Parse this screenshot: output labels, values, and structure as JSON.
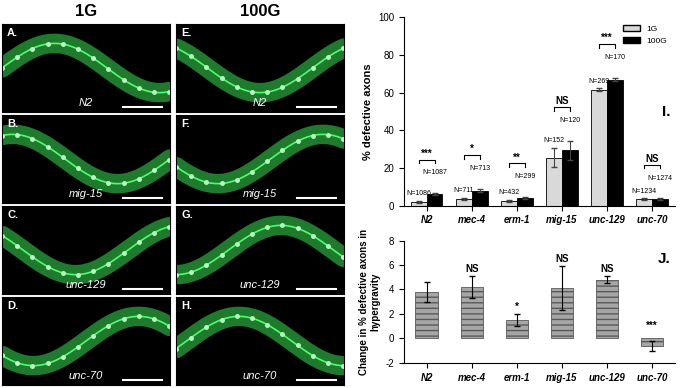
{
  "image_panels": {
    "column_headers": [
      "1G",
      "100G"
    ],
    "rows": [
      {
        "strain": "N2",
        "labels": [
          "A.",
          "E."
        ]
      },
      {
        "strain": "mig-15",
        "labels": [
          "B.",
          "F."
        ]
      },
      {
        "strain": "unc-129",
        "labels": [
          "C.",
          "G."
        ]
      },
      {
        "strain": "unc-70",
        "labels": [
          "D.",
          "H."
        ]
      }
    ]
  },
  "chart_data": [
    {
      "type": "bar",
      "panel_label": "I.",
      "y_label": "% defective axons",
      "categories": [
        "N2",
        "mec-4",
        "erm-1",
        "mig-15",
        "unc-129",
        "unc-70"
      ],
      "ylim": [
        0,
        100
      ],
      "yticks": [
        0,
        20,
        40,
        60,
        80,
        100
      ],
      "legend": "upper right",
      "series": [
        {
          "name": "1G",
          "color": "#d9d9d9",
          "values": [
            2,
            3.5,
            2.5,
            25.5,
            61.5,
            3.5
          ],
          "error": [
            0.4,
            0.6,
            0.4,
            5,
            0.8,
            0.3
          ],
          "n_labels": [
            "N=1086",
            "N=711",
            "N=432",
            "N=152",
            "N=269",
            "N=1234"
          ]
        },
        {
          "name": "100G",
          "color": "#000000",
          "values": [
            6,
            8,
            4,
            29.5,
            67,
            3.5
          ],
          "error": [
            0.5,
            0.8,
            0.5,
            5,
            1,
            0.3
          ],
          "n_labels": [
            "N=1087",
            "N=713",
            "N=299",
            "N=120",
            "N=170",
            "N=1274"
          ]
        }
      ],
      "significance": [
        "***",
        "*",
        "**",
        "NS",
        "***",
        "NS"
      ]
    },
    {
      "type": "bar",
      "panel_label": "J.",
      "y_label": "Change in % defective axons in hypergravity",
      "categories": [
        "N2",
        "mec-4",
        "erm-1",
        "mig-15",
        "unc-129",
        "unc-70"
      ],
      "values": [
        3.8,
        4.2,
        1.5,
        4.1,
        4.8,
        -0.6
      ],
      "error": [
        0.8,
        0.9,
        0.5,
        1.8,
        0.3,
        0.4
      ],
      "color": "#a6a6a6",
      "ylim": [
        -2,
        8
      ],
      "yticks": [
        -2,
        0,
        2,
        4,
        6,
        8
      ],
      "significance": [
        null,
        "NS",
        "*",
        "NS",
        "NS",
        "***"
      ]
    }
  ]
}
